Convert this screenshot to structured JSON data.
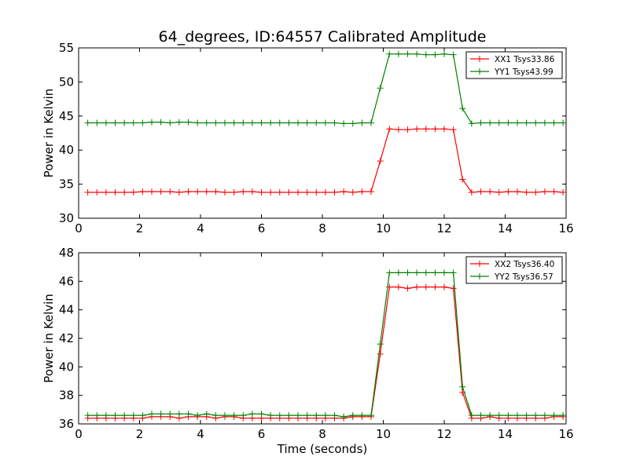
{
  "chart_data": [
    {
      "type": "line",
      "title": "64_degrees, ID:64557 Calibrated Amplitude",
      "xlabel": "",
      "ylabel": "Power in Kelvin",
      "xlim": [
        0,
        16
      ],
      "ylim": [
        30,
        55
      ],
      "xticks": [
        "0",
        "2",
        "4",
        "6",
        "8",
        "10",
        "12",
        "14",
        "16"
      ],
      "yticks": [
        "30",
        "35",
        "40",
        "45",
        "50",
        "55"
      ],
      "grid": false,
      "legend_position": "top-right",
      "x": [
        0.3,
        0.6,
        0.9,
        1.2,
        1.5,
        1.8,
        2.1,
        2.4,
        2.7,
        3.0,
        3.3,
        3.6,
        3.9,
        4.2,
        4.5,
        4.8,
        5.1,
        5.4,
        5.7,
        6.0,
        6.3,
        6.6,
        6.9,
        7.2,
        7.5,
        7.8,
        8.1,
        8.4,
        8.7,
        9.0,
        9.3,
        9.6,
        9.9,
        10.2,
        10.5,
        10.8,
        11.1,
        11.4,
        11.7,
        12.0,
        12.3,
        12.6,
        12.9,
        13.2,
        13.5,
        13.8,
        14.1,
        14.4,
        14.7,
        15.0,
        15.3,
        15.6,
        15.9
      ],
      "series": [
        {
          "name": "XX1 Tsys33.86",
          "color": "#ff0000",
          "values": [
            33.8,
            33.8,
            33.8,
            33.8,
            33.8,
            33.8,
            33.9,
            33.9,
            33.9,
            33.9,
            33.8,
            33.9,
            33.9,
            33.9,
            33.9,
            33.8,
            33.8,
            33.9,
            33.9,
            33.8,
            33.8,
            33.8,
            33.8,
            33.8,
            33.8,
            33.8,
            33.8,
            33.8,
            33.9,
            33.8,
            33.9,
            33.9,
            38.4,
            43.1,
            43.0,
            43.0,
            43.1,
            43.1,
            43.1,
            43.1,
            43.0,
            35.7,
            33.8,
            33.9,
            33.9,
            33.8,
            33.9,
            33.9,
            33.8,
            33.8,
            33.9,
            33.9,
            33.8
          ]
        },
        {
          "name": "YY1 Tsys43.99",
          "color": "#008000",
          "values": [
            44.0,
            44.0,
            44.0,
            44.0,
            44.0,
            44.0,
            44.0,
            44.1,
            44.1,
            44.0,
            44.1,
            44.1,
            44.0,
            44.0,
            44.0,
            44.0,
            44.0,
            44.0,
            44.0,
            44.0,
            44.0,
            44.0,
            44.0,
            44.0,
            44.0,
            44.0,
            44.0,
            44.0,
            43.9,
            43.9,
            44.0,
            44.0,
            49.1,
            54.1,
            54.1,
            54.1,
            54.1,
            54.0,
            54.0,
            54.1,
            54.0,
            46.1,
            43.9,
            44.0,
            44.0,
            44.0,
            44.0,
            44.0,
            44.0,
            44.0,
            44.0,
            44.0,
            44.0
          ]
        }
      ]
    },
    {
      "type": "line",
      "title": "",
      "xlabel": "Time (seconds)",
      "ylabel": "Power in Kelvin",
      "xlim": [
        0,
        16
      ],
      "ylim": [
        36,
        48
      ],
      "xticks": [
        "0",
        "2",
        "4",
        "6",
        "8",
        "10",
        "12",
        "14",
        "16"
      ],
      "yticks": [
        "36",
        "38",
        "40",
        "42",
        "44",
        "46",
        "48"
      ],
      "grid": false,
      "legend_position": "top-right",
      "x": [
        0.3,
        0.6,
        0.9,
        1.2,
        1.5,
        1.8,
        2.1,
        2.4,
        2.7,
        3.0,
        3.3,
        3.6,
        3.9,
        4.2,
        4.5,
        4.8,
        5.1,
        5.4,
        5.7,
        6.0,
        6.3,
        6.6,
        6.9,
        7.2,
        7.5,
        7.8,
        8.1,
        8.4,
        8.7,
        9.0,
        9.3,
        9.6,
        9.9,
        10.2,
        10.5,
        10.8,
        11.1,
        11.4,
        11.7,
        12.0,
        12.3,
        12.6,
        12.9,
        13.2,
        13.5,
        13.8,
        14.1,
        14.4,
        14.7,
        15.0,
        15.3,
        15.6,
        15.9
      ],
      "series": [
        {
          "name": "XX2 Tsys36.40",
          "color": "#ff0000",
          "values": [
            36.4,
            36.4,
            36.4,
            36.4,
            36.4,
            36.4,
            36.4,
            36.5,
            36.5,
            36.5,
            36.4,
            36.5,
            36.5,
            36.5,
            36.4,
            36.5,
            36.5,
            36.4,
            36.4,
            36.4,
            36.4,
            36.4,
            36.4,
            36.4,
            36.4,
            36.4,
            36.4,
            36.4,
            36.4,
            36.5,
            36.5,
            36.5,
            40.9,
            45.6,
            45.6,
            45.5,
            45.6,
            45.6,
            45.6,
            45.6,
            45.5,
            38.2,
            36.4,
            36.4,
            36.5,
            36.4,
            36.4,
            36.4,
            36.4,
            36.4,
            36.4,
            36.5,
            36.5
          ]
        },
        {
          "name": "YY2 Tsys36.57",
          "color": "#008000",
          "values": [
            36.6,
            36.6,
            36.6,
            36.6,
            36.6,
            36.6,
            36.6,
            36.7,
            36.7,
            36.7,
            36.7,
            36.7,
            36.6,
            36.7,
            36.6,
            36.6,
            36.6,
            36.6,
            36.7,
            36.7,
            36.6,
            36.6,
            36.6,
            36.6,
            36.6,
            36.6,
            36.6,
            36.6,
            36.5,
            36.6,
            36.6,
            36.6,
            41.6,
            46.6,
            46.6,
            46.6,
            46.6,
            46.6,
            46.6,
            46.6,
            46.6,
            38.6,
            36.6,
            36.6,
            36.6,
            36.6,
            36.6,
            36.6,
            36.6,
            36.6,
            36.6,
            36.6,
            36.6
          ]
        }
      ]
    }
  ]
}
